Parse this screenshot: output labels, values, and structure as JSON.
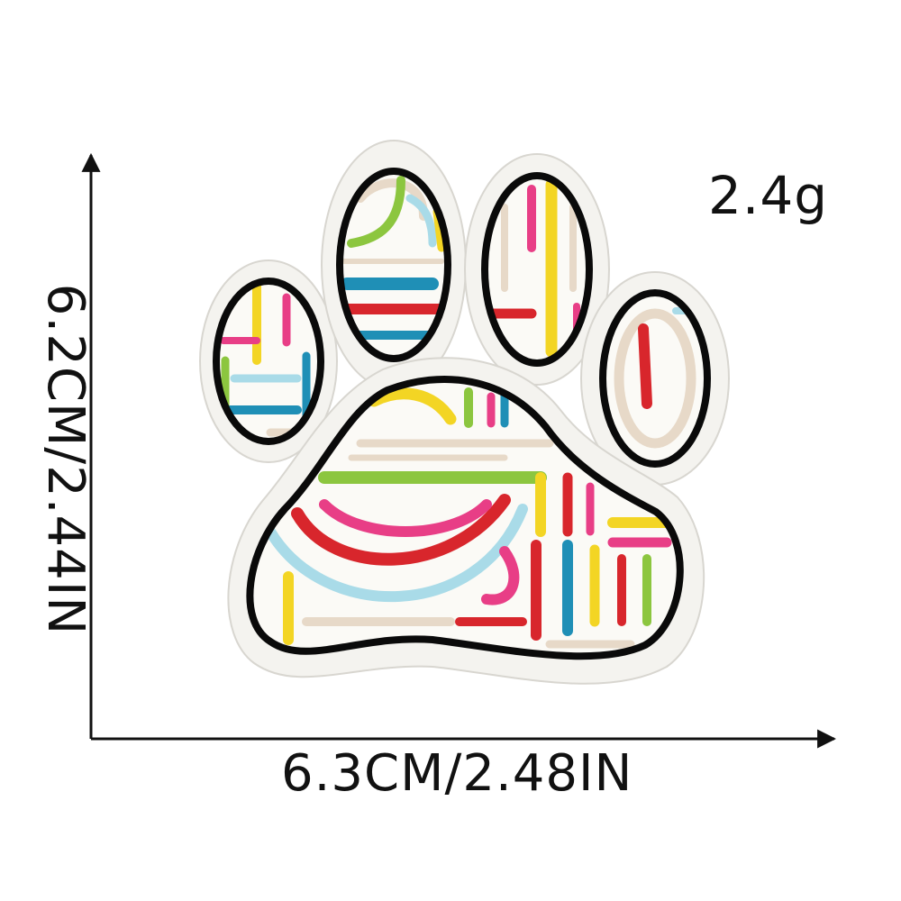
{
  "product": {
    "weight": "2.4g",
    "width_label": "6.3CM/2.48IN",
    "height_label": "6.2CM/2.44IN",
    "name": "paw print embroidered patch"
  },
  "colors": {
    "border": "#0a0a0a",
    "backing": "#f4f3ef",
    "red": "#d8262c",
    "pink": "#e83e86",
    "yellow": "#f3d524",
    "green": "#8cc63f",
    "teal": "#1f8fb6",
    "light_blue": "#a9dbe8",
    "beige": "#e7d9c8"
  }
}
